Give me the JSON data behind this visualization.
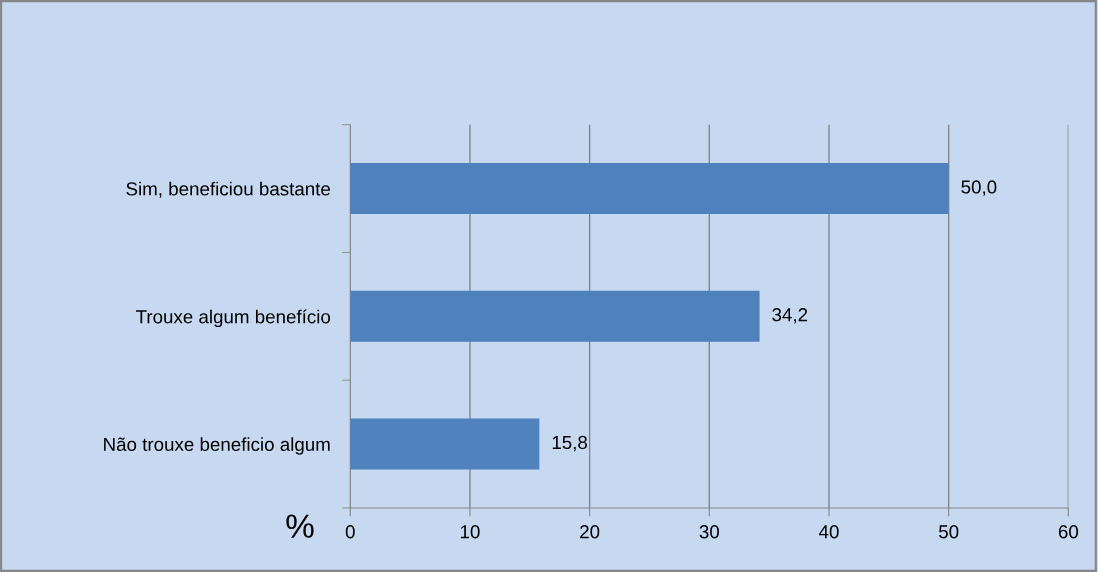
{
  "chart_data": {
    "type": "bar",
    "orientation": "horizontal",
    "categories": [
      "Sim, beneficiou bastante",
      "Trouxe algum benefício",
      "Não trouxe beneficio algum"
    ],
    "values": [
      50.0,
      34.2,
      15.8
    ],
    "color": "#4f81bd",
    "value_labels": [
      "50,0",
      "34,2",
      "15,8"
    ],
    "xlabel": "%",
    "xlim": [
      0,
      60
    ],
    "xticks": [
      0,
      10,
      20,
      30,
      40,
      50,
      60
    ],
    "grid": "x",
    "legend": false
  }
}
